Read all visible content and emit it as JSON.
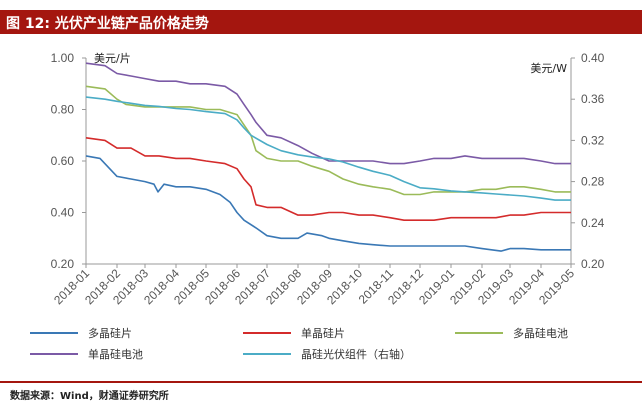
{
  "figure": {
    "title": "图 12:  光伏产业链产品价格走势",
    "source": "数据来源：Wind，财通证券研究所"
  },
  "chart_data": {
    "type": "line",
    "left_unit": "美元/片",
    "right_unit": "美元/W",
    "y_left": {
      "min": 0.2,
      "max": 1.0,
      "ticks": [
        "0.20",
        "0.40",
        "0.60",
        "0.80",
        "1.00"
      ]
    },
    "y_right": {
      "min": 0.2,
      "max": 0.4,
      "ticks": [
        "0.20",
        "0.24",
        "0.28",
        "0.32",
        "0.36",
        "0.40"
      ]
    },
    "x_ticks": [
      "2018-01",
      "2018-02",
      "2018-03",
      "2018-04",
      "2018-05",
      "2018-06",
      "2018-07",
      "2018-08",
      "2018-09",
      "2018-10",
      "2018-11",
      "2018-12",
      "2019-01",
      "2019-02",
      "2019-03",
      "2019-04",
      "2019-05"
    ],
    "x_range": [
      "2018-01",
      "2019-05"
    ],
    "grid": false,
    "legend_position": "bottom",
    "series": [
      {
        "name": "多晶硅片",
        "axis": "left",
        "color": "#3a78b5",
        "points": [
          [
            "2018-01",
            0.62
          ],
          [
            "2018-01-15",
            0.61
          ],
          [
            "2018-02",
            0.54
          ],
          [
            "2018-02-15",
            0.53
          ],
          [
            "2018-03",
            0.52
          ],
          [
            "2018-03-10",
            0.51
          ],
          [
            "2018-03-14",
            0.48
          ],
          [
            "2018-03-20",
            0.51
          ],
          [
            "2018-04",
            0.5
          ],
          [
            "2018-04-15",
            0.5
          ],
          [
            "2018-05",
            0.49
          ],
          [
            "2018-05-15",
            0.47
          ],
          [
            "2018-05-25",
            0.44
          ],
          [
            "2018-06",
            0.4
          ],
          [
            "2018-06-08",
            0.37
          ],
          [
            "2018-06-20",
            0.34
          ],
          [
            "2018-07",
            0.31
          ],
          [
            "2018-07-15",
            0.3
          ],
          [
            "2018-08",
            0.3
          ],
          [
            "2018-08-10",
            0.32
          ],
          [
            "2018-08-25",
            0.31
          ],
          [
            "2018-09",
            0.3
          ],
          [
            "2018-09-15",
            0.29
          ],
          [
            "2018-10",
            0.28
          ],
          [
            "2018-10-15",
            0.275
          ],
          [
            "2018-11",
            0.27
          ],
          [
            "2018-11-15",
            0.27
          ],
          [
            "2018-12",
            0.27
          ],
          [
            "2018-12-15",
            0.27
          ],
          [
            "2019-01",
            0.27
          ],
          [
            "2019-01-15",
            0.27
          ],
          [
            "2019-02",
            0.26
          ],
          [
            "2019-02-20",
            0.25
          ],
          [
            "2019-03",
            0.26
          ],
          [
            "2019-03-15",
            0.26
          ],
          [
            "2019-04",
            0.255
          ],
          [
            "2019-04-15",
            0.255
          ],
          [
            "2019-05",
            0.255
          ]
        ]
      },
      {
        "name": "单晶硅片",
        "axis": "left",
        "color": "#d42b2b",
        "points": [
          [
            "2018-01",
            0.69
          ],
          [
            "2018-01-20",
            0.68
          ],
          [
            "2018-02",
            0.65
          ],
          [
            "2018-02-15",
            0.65
          ],
          [
            "2018-03",
            0.62
          ],
          [
            "2018-03-15",
            0.62
          ],
          [
            "2018-04",
            0.61
          ],
          [
            "2018-04-15",
            0.61
          ],
          [
            "2018-05",
            0.6
          ],
          [
            "2018-05-20",
            0.59
          ],
          [
            "2018-06",
            0.57
          ],
          [
            "2018-06-08",
            0.53
          ],
          [
            "2018-06-15",
            0.5
          ],
          [
            "2018-06-20",
            0.43
          ],
          [
            "2018-07",
            0.42
          ],
          [
            "2018-07-15",
            0.42
          ],
          [
            "2018-08",
            0.39
          ],
          [
            "2018-08-15",
            0.39
          ],
          [
            "2018-09",
            0.4
          ],
          [
            "2018-09-15",
            0.4
          ],
          [
            "2018-10",
            0.39
          ],
          [
            "2018-10-15",
            0.39
          ],
          [
            "2018-11",
            0.38
          ],
          [
            "2018-11-15",
            0.37
          ],
          [
            "2018-12",
            0.37
          ],
          [
            "2018-12-15",
            0.37
          ],
          [
            "2019-01",
            0.38
          ],
          [
            "2019-01-15",
            0.38
          ],
          [
            "2019-02",
            0.38
          ],
          [
            "2019-02-15",
            0.38
          ],
          [
            "2019-03",
            0.39
          ],
          [
            "2019-03-15",
            0.39
          ],
          [
            "2019-04",
            0.4
          ],
          [
            "2019-04-15",
            0.4
          ],
          [
            "2019-05",
            0.4
          ]
        ]
      },
      {
        "name": "多晶硅电池",
        "axis": "left",
        "color": "#9bbb59",
        "points": [
          [
            "2018-01",
            0.89
          ],
          [
            "2018-01-20",
            0.88
          ],
          [
            "2018-02",
            0.84
          ],
          [
            "2018-02-10",
            0.82
          ],
          [
            "2018-03",
            0.81
          ],
          [
            "2018-03-15",
            0.81
          ],
          [
            "2018-04",
            0.81
          ],
          [
            "2018-04-15",
            0.81
          ],
          [
            "2018-05",
            0.8
          ],
          [
            "2018-05-15",
            0.8
          ],
          [
            "2018-06",
            0.78
          ],
          [
            "2018-06-08",
            0.74
          ],
          [
            "2018-06-15",
            0.7
          ],
          [
            "2018-06-20",
            0.64
          ],
          [
            "2018-07",
            0.61
          ],
          [
            "2018-07-15",
            0.6
          ],
          [
            "2018-08",
            0.6
          ],
          [
            "2018-08-15",
            0.58
          ],
          [
            "2018-09",
            0.56
          ],
          [
            "2018-09-15",
            0.53
          ],
          [
            "2018-10",
            0.51
          ],
          [
            "2018-10-15",
            0.5
          ],
          [
            "2018-11",
            0.49
          ],
          [
            "2018-11-15",
            0.47
          ],
          [
            "2018-12",
            0.47
          ],
          [
            "2018-12-15",
            0.48
          ],
          [
            "2019-01",
            0.48
          ],
          [
            "2019-01-15",
            0.48
          ],
          [
            "2019-02",
            0.49
          ],
          [
            "2019-02-15",
            0.49
          ],
          [
            "2019-03",
            0.5
          ],
          [
            "2019-03-15",
            0.5
          ],
          [
            "2019-04",
            0.49
          ],
          [
            "2019-04-15",
            0.48
          ],
          [
            "2019-05",
            0.48
          ]
        ]
      },
      {
        "name": "单晶硅电池",
        "axis": "left",
        "color": "#7b5aa6",
        "points": [
          [
            "2018-01",
            0.98
          ],
          [
            "2018-01-20",
            0.97
          ],
          [
            "2018-02",
            0.94
          ],
          [
            "2018-02-15",
            0.93
          ],
          [
            "2018-03",
            0.92
          ],
          [
            "2018-03-15",
            0.91
          ],
          [
            "2018-04",
            0.91
          ],
          [
            "2018-04-15",
            0.9
          ],
          [
            "2018-05",
            0.9
          ],
          [
            "2018-05-20",
            0.89
          ],
          [
            "2018-06",
            0.86
          ],
          [
            "2018-06-08",
            0.82
          ],
          [
            "2018-06-15",
            0.78
          ],
          [
            "2018-06-20",
            0.75
          ],
          [
            "2018-07",
            0.7
          ],
          [
            "2018-07-15",
            0.69
          ],
          [
            "2018-08",
            0.66
          ],
          [
            "2018-08-15",
            0.63
          ],
          [
            "2018-09",
            0.6
          ],
          [
            "2018-09-15",
            0.6
          ],
          [
            "2018-10",
            0.6
          ],
          [
            "2018-10-15",
            0.6
          ],
          [
            "2018-11",
            0.59
          ],
          [
            "2018-11-15",
            0.59
          ],
          [
            "2018-12",
            0.6
          ],
          [
            "2018-12-15",
            0.61
          ],
          [
            "2019-01",
            0.61
          ],
          [
            "2019-01-15",
            0.62
          ],
          [
            "2019-02",
            0.61
          ],
          [
            "2019-02-15",
            0.61
          ],
          [
            "2019-03",
            0.61
          ],
          [
            "2019-03-15",
            0.61
          ],
          [
            "2019-04",
            0.6
          ],
          [
            "2019-04-15",
            0.59
          ],
          [
            "2019-05",
            0.59
          ]
        ]
      },
      {
        "name": "晶硅光伏组件（右轴）",
        "axis": "right",
        "color": "#4bacc6",
        "points": [
          [
            "2018-01",
            0.362
          ],
          [
            "2018-01-20",
            0.36
          ],
          [
            "2018-02",
            0.358
          ],
          [
            "2018-02-15",
            0.356
          ],
          [
            "2018-03",
            0.354
          ],
          [
            "2018-03-15",
            0.353
          ],
          [
            "2018-04",
            0.351
          ],
          [
            "2018-04-15",
            0.35
          ],
          [
            "2018-05",
            0.348
          ],
          [
            "2018-05-20",
            0.346
          ],
          [
            "2018-06",
            0.34
          ],
          [
            "2018-06-08",
            0.332
          ],
          [
            "2018-06-15",
            0.325
          ],
          [
            "2018-07",
            0.316
          ],
          [
            "2018-07-15",
            0.31
          ],
          [
            "2018-08",
            0.306
          ],
          [
            "2018-08-15",
            0.304
          ],
          [
            "2018-09",
            0.302
          ],
          [
            "2018-09-15",
            0.299
          ],
          [
            "2018-10",
            0.294
          ],
          [
            "2018-10-15",
            0.29
          ],
          [
            "2018-11",
            0.286
          ],
          [
            "2018-11-15",
            0.28
          ],
          [
            "2018-12",
            0.274
          ],
          [
            "2018-12-15",
            0.273
          ],
          [
            "2019-01",
            0.271
          ],
          [
            "2019-01-15",
            0.27
          ],
          [
            "2019-02",
            0.269
          ],
          [
            "2019-02-15",
            0.268
          ],
          [
            "2019-03",
            0.267
          ],
          [
            "2019-03-15",
            0.266
          ],
          [
            "2019-04",
            0.264
          ],
          [
            "2019-04-15",
            0.262
          ],
          [
            "2019-05",
            0.262
          ]
        ]
      }
    ]
  }
}
